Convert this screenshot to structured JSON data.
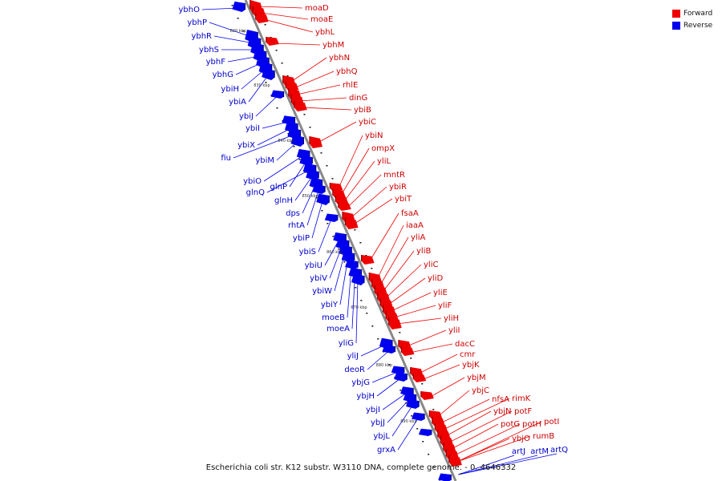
{
  "caption": "Escherichia coli str. K12 substr. W3110 DNA, complete genome. - 0..4646332",
  "legend": [
    {
      "label": "Forward",
      "color": "#ee0000"
    },
    {
      "label": "Reverse",
      "color": "#0000ee"
    }
  ],
  "colors": {
    "forward": "#ee0000",
    "reverse": "#0000ee",
    "axis": "#888888",
    "text_forward": "#cc0000",
    "text_reverse": "#0000cc"
  },
  "ticks": [
    "820 kbp",
    "830 kbp",
    "840 kbp",
    "850 kbp",
    "860 kbp",
    "870 kbp",
    "880 kbp",
    "890 kbp"
  ],
  "genes_reverse": [
    "ybhO",
    "ybhP",
    "ybhR",
    "ybhS",
    "ybhF",
    "ybhG",
    "ybiH",
    "ybiA",
    "ybiJ",
    "ybiI",
    "ybiX",
    "fiu",
    "ybiM",
    "ybiO",
    "glnP",
    "glnQ",
    "glnH",
    "dps",
    "rhtA",
    "ybiP",
    "ybiS",
    "ybiU",
    "ybiV",
    "ybiW",
    "ybiY",
    "moeB",
    "moeA",
    "yliG",
    "yliJ",
    "deoR",
    "ybjG",
    "ybjH",
    "ybjI",
    "ybjJ",
    "ybjL",
    "grxA",
    "artJ",
    "artM",
    "artQ"
  ],
  "genes_forward": [
    "moaD",
    "moaE",
    "ybhL",
    "ybhM",
    "ybhN",
    "ybhQ",
    "rhlE",
    "dinG",
    "ybiB",
    "ybiC",
    "ybiN",
    "ompX",
    "yliL",
    "mntR",
    "ybiR",
    "ybiT",
    "fsaA",
    "iaaA",
    "yliA",
    "yliB",
    "yliC",
    "yliD",
    "yliE",
    "yliF",
    "yliH",
    "yliI",
    "dacC",
    "cmr",
    "ybjK",
    "ybjM",
    "ybjC",
    "nfsA",
    "rimK",
    "ybjN",
    "potF",
    "potG",
    "potH",
    "potI",
    "ybjO",
    "rumB"
  ]
}
